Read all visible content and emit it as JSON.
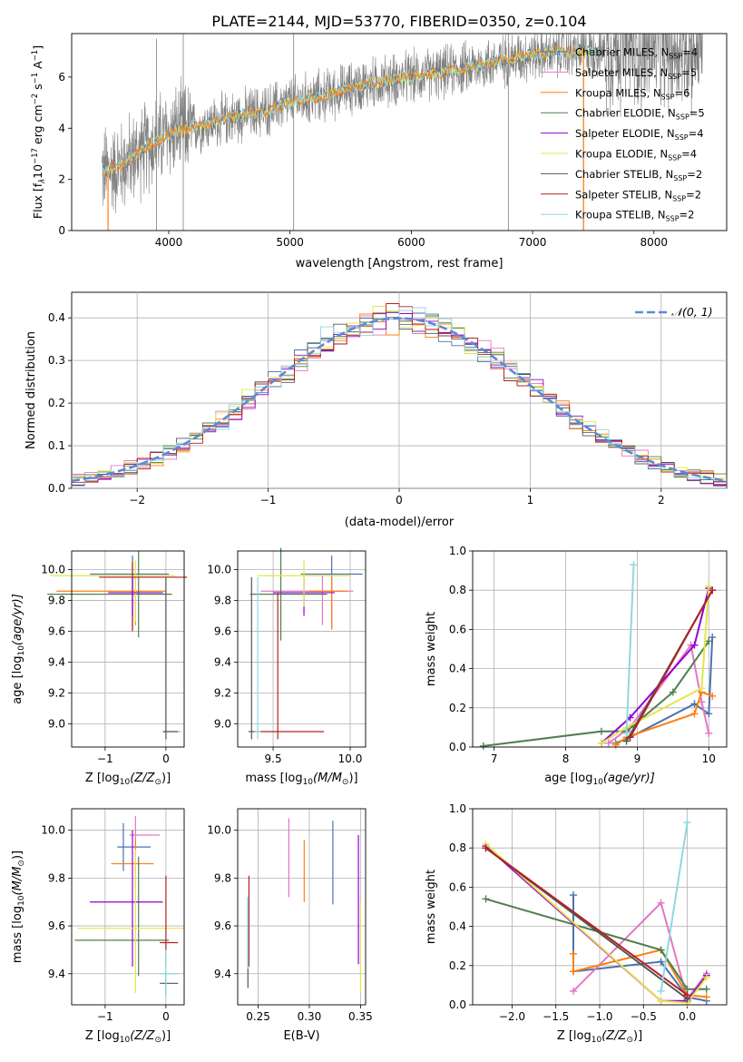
{
  "figure_title": "PLATE=2144, MJD=53770, FIBERID=0350, z=0.104",
  "series_colors": [
    "#4c72b0",
    "#e377c2",
    "#ff7f0e",
    "#4f7f4f",
    "#9400d3",
    "#e5e54c",
    "#555555",
    "#b22222",
    "#8fd8e0"
  ],
  "chart_data": [
    {
      "id": "spectrum",
      "type": "line",
      "xlabel": "wavelength [Angstrom, rest frame]",
      "ylabel": "Flux [f$_\\lambda$10$^{-17}$ erg cm$^{-2}$ s$^{-1}$ A$^{-1}$]",
      "ylabel_main": "Flux [f",
      "ylabel_sub1": "λ",
      "ylabel_mid": "10",
      "ylabel_sup1": "−17",
      "ylabel_mid2": " erg cm",
      "ylabel_sup2": "−2",
      "ylabel_mid3": " s",
      "ylabel_sup3": "−1",
      "ylabel_mid4": " A",
      "ylabel_sup4": "−1",
      "ylabel_end": "]",
      "xlim": [
        3200,
        8600
      ],
      "ylim": [
        0,
        7.7
      ],
      "xticks": [
        4000,
        5000,
        6000,
        7000,
        8000
      ],
      "yticks": [
        0,
        2,
        4,
        6
      ],
      "legend_location": "top-right",
      "data_envelope": {
        "x": [
          3450,
          3600,
          3800,
          4000,
          4200,
          4500,
          4800,
          5000,
          5300,
          5600,
          6000,
          6300,
          6600,
          7000,
          7400,
          7600
        ],
        "y": [
          2.3,
          2.5,
          3.2,
          3.8,
          4.0,
          4.4,
          4.7,
          5.0,
          5.3,
          5.7,
          6.0,
          6.2,
          6.5,
          6.9,
          7.0,
          7.0
        ]
      },
      "legend": [
        {
          "label": "Chabrier MILES, N",
          "sub": "SSP",
          "tail": "=4",
          "color": "#4c72b0"
        },
        {
          "label": "Salpeter MILES, N",
          "sub": "SSP",
          "tail": "=5",
          "color": "#e377c2"
        },
        {
          "label": "Kroupa MILES, N",
          "sub": "SSP",
          "tail": "=6",
          "color": "#ff7f0e"
        },
        {
          "label": "Chabrier ELODIE, N",
          "sub": "SSP",
          "tail": "=5",
          "color": "#4f7f4f"
        },
        {
          "label": "Salpeter ELODIE, N",
          "sub": "SSP",
          "tail": "=4",
          "color": "#9400d3"
        },
        {
          "label": "Kroupa ELODIE, N",
          "sub": "SSP",
          "tail": "=4",
          "color": "#e5e54c"
        },
        {
          "label": "Chabrier STELIB, N",
          "sub": "SSP",
          "tail": "=2",
          "color": "#555555"
        },
        {
          "label": "Salpeter STELIB, N",
          "sub": "SSP",
          "tail": "=2",
          "color": "#b22222"
        },
        {
          "label": "Kroupa STELIB, N",
          "sub": "SSP",
          "tail": "=2",
          "color": "#8fd8e0"
        }
      ]
    },
    {
      "id": "residuals",
      "type": "line",
      "xlabel": "(data-model)/error",
      "ylabel": "Normed distribution",
      "xlim": [
        -2.5,
        2.5
      ],
      "ylim": [
        0,
        0.46
      ],
      "xticks": [
        -2,
        -1,
        0,
        1,
        2
      ],
      "yticks": [
        0.0,
        0.1,
        0.2,
        0.3,
        0.4
      ],
      "grid": true,
      "legend_location": "top-right",
      "legend_label": "𝒩(0, 1)",
      "normal": {
        "mean": 0,
        "sigma": 1
      }
    },
    {
      "id": "age_vs_Z",
      "type": "scatter",
      "xlabel": "Z [log",
      "xlabel_sub": "10",
      "xlabel_tail": "(Z/Z",
      "xlabel_sub2": "⊙",
      "xlabel_end": ")]",
      "ylabel": "age  [log",
      "ylabel_sub": "10",
      "ylabel_tail": "(age/yr)]",
      "xlim": [
        -1.55,
        0.3
      ],
      "ylim": [
        8.85,
        10.12
      ],
      "xticks": [
        -1,
        0
      ],
      "yticks": [
        9.0,
        9.2,
        9.4,
        9.6,
        9.8,
        10.0
      ],
      "grid": true,
      "errorbars": [
        {
          "x": -0.55,
          "y": 9.97,
          "xerr": [
            0.7,
            0.6
          ],
          "yerr": [
            0.35,
            0.12
          ],
          "color": "#4c72b0"
        },
        {
          "x": -0.5,
          "y": 9.86,
          "xerr": [
            1.3,
            0.5
          ],
          "yerr": [
            0.22,
            0.1
          ],
          "color": "#ff7f0e"
        },
        {
          "x": -0.45,
          "y": 9.84,
          "xerr": [
            1.5,
            0.55
          ],
          "yerr": [
            0.28,
            0.28
          ],
          "color": "#4f7f4f"
        },
        {
          "x": -0.5,
          "y": 9.96,
          "xerr": [
            1.4,
            0.65
          ],
          "yerr": [
            0.3,
            0.1
          ],
          "color": "#e5e54c"
        },
        {
          "x": -0.55,
          "y": 9.95,
          "xerr": [
            0.55,
            0.9
          ],
          "yerr": [
            0.35,
            0.1
          ],
          "color": "#b22222"
        },
        {
          "x": -0.55,
          "y": 9.85,
          "xerr": [
            0.4,
            0.5
          ],
          "yerr": [
            0.15,
            0.1
          ],
          "color": "#9400d3"
        },
        {
          "x": 0.0,
          "y": 8.95,
          "xerr": [
            0.05,
            0.25
          ],
          "yerr": [
            0.05,
            1.0
          ],
          "color": "#8fd8e0"
        },
        {
          "x": 0.0,
          "y": 8.95,
          "xerr": [
            0.05,
            0.2
          ],
          "yerr": [
            0.05,
            1.0
          ],
          "color": "#555555"
        }
      ]
    },
    {
      "id": "age_vs_mass",
      "type": "scatter",
      "xlabel": "mass [log",
      "xlabel_sub": "10",
      "xlabel_tail": "(M/M",
      "xlabel_sub2": "⊙",
      "xlabel_end": ")]",
      "xlim": [
        9.27,
        10.1
      ],
      "ylim": [
        8.85,
        10.12
      ],
      "xticks": [
        9.5,
        10.0
      ],
      "yticks": [
        9.0,
        9.2,
        9.4,
        9.6,
        9.8,
        10.0
      ],
      "grid": true,
      "errorbars": [
        {
          "x": 9.88,
          "y": 9.97,
          "xerr": [
            0.2,
            0.2
          ],
          "yerr": [
            0.35,
            0.12
          ],
          "color": "#4c72b0"
        },
        {
          "x": 9.82,
          "y": 9.86,
          "xerr": [
            0.4,
            0.2
          ],
          "yerr": [
            0.22,
            0.1
          ],
          "color": "#e377c2"
        },
        {
          "x": 9.88,
          "y": 9.86,
          "xerr": [
            0.15,
            0.1
          ],
          "yerr": [
            0.25,
            0.1
          ],
          "color": "#ff7f0e"
        },
        {
          "x": 9.55,
          "y": 9.84,
          "xerr": [
            0.2,
            0.3
          ],
          "yerr": [
            0.3,
            0.3
          ],
          "color": "#4f7f4f"
        },
        {
          "x": 9.7,
          "y": 9.85,
          "xerr": [
            0.2,
            0.2
          ],
          "yerr": [
            0.15,
            0.1
          ],
          "color": "#9400d3"
        },
        {
          "x": 9.7,
          "y": 9.96,
          "xerr": [
            0.3,
            0.3
          ],
          "yerr": [
            0.2,
            0.1
          ],
          "color": "#e5e54c"
        },
        {
          "x": 9.36,
          "y": 8.95,
          "xerr": [
            0.02,
            0.02
          ],
          "yerr": [
            0.05,
            1.0
          ],
          "color": "#555555"
        },
        {
          "x": 9.53,
          "y": 8.95,
          "xerr": [
            0.15,
            0.3
          ],
          "yerr": [
            0.05,
            0.9
          ],
          "color": "#b22222"
        },
        {
          "x": 9.4,
          "y": 8.95,
          "xerr": [
            0.02,
            0.02
          ],
          "yerr": [
            0.05,
            1.0
          ],
          "color": "#8fd8e0"
        }
      ]
    },
    {
      "id": "weight_vs_age",
      "type": "line",
      "xlabel": "age  [log",
      "xlabel_sub": "10",
      "xlabel_tail": "(age/yr)]",
      "ylabel": "mass weight",
      "xlim": [
        6.7,
        10.25
      ],
      "ylim": [
        0,
        1.0
      ],
      "xticks": [
        7,
        8,
        9,
        10
      ],
      "yticks": [
        0.0,
        0.2,
        0.4,
        0.6,
        0.8,
        1.0
      ],
      "grid": true,
      "series": [
        {
          "color": "#4c72b0",
          "x": [
            8.7,
            8.9,
            9.8,
            10.0,
            10.05
          ],
          "y": [
            0.02,
            0.05,
            0.22,
            0.17,
            0.56
          ]
        },
        {
          "color": "#e377c2",
          "x": [
            8.6,
            8.9,
            9.75,
            9.9,
            10.0
          ],
          "y": [
            0.02,
            0.1,
            0.52,
            0.23,
            0.07
          ]
        },
        {
          "color": "#ff7f0e",
          "x": [
            8.7,
            8.85,
            9.8,
            9.9,
            10.05
          ],
          "y": [
            0.01,
            0.05,
            0.17,
            0.28,
            0.26
          ]
        },
        {
          "color": "#4f7f4f",
          "x": [
            6.85,
            8.5,
            8.85,
            9.5,
            10.0
          ],
          "y": [
            0.005,
            0.08,
            0.08,
            0.28,
            0.54
          ]
        },
        {
          "color": "#9400d3",
          "x": [
            8.5,
            8.9,
            9.8,
            10.0
          ],
          "y": [
            0.02,
            0.15,
            0.52,
            0.81
          ]
        },
        {
          "color": "#e5e54c",
          "x": [
            8.5,
            8.85,
            9.9,
            10.0
          ],
          "y": [
            0.02,
            0.1,
            0.3,
            0.82
          ]
        },
        {
          "color": "#555555",
          "x": [
            8.85,
            10.05
          ],
          "y": [
            0.03,
            0.8
          ]
        },
        {
          "color": "#b22222",
          "x": [
            8.9,
            10.05
          ],
          "y": [
            0.05,
            0.8
          ]
        },
        {
          "color": "#8fd8e0",
          "x": [
            8.85,
            8.95
          ],
          "y": [
            0.07,
            0.93
          ]
        }
      ]
    },
    {
      "id": "mass_vs_Z",
      "type": "scatter",
      "xlabel": "Z [log",
      "xlabel_sub": "10",
      "xlabel_tail": "(Z/Z",
      "xlabel_sub2": "⊙",
      "xlabel_end": ")]",
      "ylabel": "mass [log",
      "ylabel_sub": "10",
      "ylabel_tail": "(M/M",
      "ylabel_sub2": "⊙",
      "ylabel_end": ")]",
      "xlim": [
        -1.55,
        0.3
      ],
      "ylim": [
        9.27,
        10.09
      ],
      "xticks": [
        -1,
        0
      ],
      "yticks": [
        9.4,
        9.6,
        9.8,
        10.0
      ],
      "grid": true,
      "errorbars": [
        {
          "x": -0.7,
          "y": 9.93,
          "xerr": [
            0.1,
            0.45
          ],
          "yerr": [
            0.1,
            0.1
          ],
          "color": "#4c72b0"
        },
        {
          "x": -0.5,
          "y": 9.98,
          "xerr": [
            0.1,
            0.4
          ],
          "yerr": [
            0.05,
            0.08
          ],
          "color": "#e377c2"
        },
        {
          "x": -0.5,
          "y": 9.86,
          "xerr": [
            0.4,
            0.3
          ],
          "yerr": [
            0.1,
            0.1
          ],
          "color": "#ff7f0e"
        },
        {
          "x": -0.45,
          "y": 9.54,
          "xerr": [
            1.05,
            0.5
          ],
          "yerr": [
            0.15,
            0.35
          ],
          "color": "#4f7f4f"
        },
        {
          "x": -0.55,
          "y": 9.7,
          "xerr": [
            0.7,
            0.5
          ],
          "yerr": [
            0.27,
            0.3
          ],
          "color": "#9400d3"
        },
        {
          "x": -0.5,
          "y": 9.59,
          "xerr": [
            0.95,
            0.8
          ],
          "yerr": [
            0.27,
            0.33
          ],
          "color": "#e5e54c"
        },
        {
          "x": 0.0,
          "y": 9.36,
          "xerr": [
            0.1,
            0.2
          ],
          "yerr": [
            0.05,
            0.05
          ],
          "color": "#555555"
        },
        {
          "x": 0.0,
          "y": 9.53,
          "xerr": [
            0.1,
            0.2
          ],
          "yerr": [
            0.1,
            0.28
          ],
          "color": "#b22222"
        },
        {
          "x": 0.0,
          "y": 9.4,
          "xerr": [
            0.1,
            0.2
          ],
          "yerr": [
            0.1,
            0.1
          ],
          "color": "#8fd8e0"
        }
      ]
    },
    {
      "id": "mass_vs_ebv",
      "type": "scatter",
      "xlabel": "E(B-V)",
      "xlim": [
        0.23,
        0.355
      ],
      "ylim": [
        9.27,
        10.09
      ],
      "xticks": [
        0.25,
        0.3,
        0.35
      ],
      "yticks": [
        9.4,
        9.6,
        9.8,
        10.0
      ],
      "grid": true,
      "errorbars": [
        {
          "x": 0.323,
          "y": 9.86,
          "xerr": [
            0,
            0
          ],
          "yerr": [
            0.17,
            0.18
          ],
          "color": "#4c72b0"
        },
        {
          "x": 0.28,
          "y": 9.88,
          "xerr": [
            0,
            0
          ],
          "yerr": [
            0.16,
            0.17
          ],
          "color": "#e377c2"
        },
        {
          "x": 0.295,
          "y": 9.86,
          "xerr": [
            0,
            0
          ],
          "yerr": [
            0.16,
            0.1
          ],
          "color": "#ff7f0e"
        },
        {
          "x": 0.348,
          "y": 9.7,
          "xerr": [
            0,
            0
          ],
          "yerr": [
            0.26,
            0.28
          ],
          "color": "#9400d3"
        },
        {
          "x": 0.35,
          "y": 9.5,
          "xerr": [
            0,
            0
          ],
          "yerr": [
            0.18,
            0.2
          ],
          "color": "#e5e54c"
        },
        {
          "x": 0.24,
          "y": 9.52,
          "xerr": [
            0,
            0
          ],
          "yerr": [
            0.18,
            0.2
          ],
          "color": "#555555"
        },
        {
          "x": 0.241,
          "y": 9.63,
          "xerr": [
            0,
            0
          ],
          "yerr": [
            0.2,
            0.18
          ],
          "color": "#b22222"
        },
        {
          "x": 0.24,
          "y": 9.52,
          "xerr": [
            0,
            0
          ],
          "yerr": [
            0.1,
            0.2
          ],
          "color": "#8fd8e0"
        }
      ]
    },
    {
      "id": "weight_vs_Z",
      "type": "line",
      "xlabel": "Z [log",
      "xlabel_sub": "10",
      "xlabel_tail": "(Z/Z",
      "xlabel_sub2": "⊙",
      "xlabel_end": ")]",
      "ylabel": "mass weight",
      "xlim": [
        -2.45,
        0.45
      ],
      "ylim": [
        0,
        1.0
      ],
      "xticks": [
        -2.0,
        -1.5,
        -1.0,
        -0.5,
        0.0
      ],
      "yticks": [
        0.0,
        0.2,
        0.4,
        0.6,
        0.8,
        1.0
      ],
      "grid": true,
      "series": [
        {
          "color": "#4c72b0",
          "x": [
            -1.3,
            -1.3,
            -0.3,
            0.0,
            0.22
          ],
          "y": [
            0.56,
            0.17,
            0.22,
            0.04,
            0.02
          ]
        },
        {
          "color": "#e377c2",
          "x": [
            -1.3,
            -0.3,
            0.0,
            0.22
          ],
          "y": [
            0.07,
            0.52,
            0.03,
            0.16
          ]
        },
        {
          "color": "#ff7f0e",
          "x": [
            -1.3,
            -1.3,
            -0.3,
            0.0,
            0.22
          ],
          "y": [
            0.26,
            0.17,
            0.28,
            0.05,
            0.04
          ]
        },
        {
          "color": "#4f7f4f",
          "x": [
            -2.3,
            -0.3,
            0.0,
            0.22
          ],
          "y": [
            0.54,
            0.28,
            0.08,
            0.08
          ]
        },
        {
          "color": "#9400d3",
          "x": [
            -2.3,
            -0.3,
            0.0,
            0.22
          ],
          "y": [
            0.81,
            0.02,
            0.02,
            0.15
          ]
        },
        {
          "color": "#e5e54c",
          "x": [
            -2.3,
            -0.3,
            0.0,
            0.22
          ],
          "y": [
            0.82,
            0.02,
            0.01,
            0.14
          ]
        },
        {
          "color": "#555555",
          "x": [
            -2.3,
            0.0
          ],
          "y": [
            0.8,
            0.03
          ]
        },
        {
          "color": "#b22222",
          "x": [
            -2.3,
            0.0
          ],
          "y": [
            0.8,
            0.05
          ]
        },
        {
          "color": "#8fd8e0",
          "x": [
            -0.3,
            0.0
          ],
          "y": [
            0.07,
            0.93
          ]
        }
      ]
    }
  ]
}
